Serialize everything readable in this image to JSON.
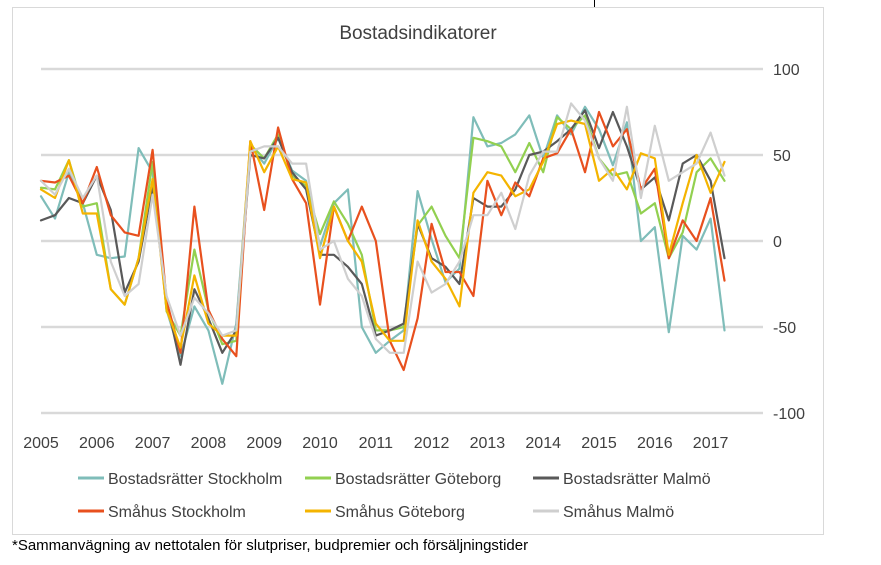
{
  "chart_data": {
    "type": "line",
    "title": "Bostadsindikatorer",
    "xlabel": "",
    "ylabel": "",
    "ylim": [
      -100,
      100
    ],
    "y_ticks": [
      100,
      50,
      0,
      -50,
      -100
    ],
    "y_tick_labels": [
      "100",
      "50",
      "0",
      "-50",
      "-100"
    ],
    "x_ticks": [
      2005,
      2006,
      2007,
      2008,
      2009,
      2010,
      2011,
      2012,
      2013,
      2014,
      2015,
      2016,
      2017
    ],
    "x_tick_labels": [
      "2005",
      "2006",
      "2007",
      "2008",
      "2009",
      "2010",
      "2011",
      "2012",
      "2013",
      "2014",
      "2015",
      "2016",
      "2017"
    ],
    "grid": true,
    "legend_position": "bottom",
    "x": [
      2005.0,
      2005.25,
      2005.5,
      2005.75,
      2006.0,
      2006.25,
      2006.5,
      2006.75,
      2007.0,
      2007.25,
      2007.5,
      2007.75,
      2008.0,
      2008.25,
      2008.5,
      2008.75,
      2009.0,
      2009.25,
      2009.5,
      2009.75,
      2010.0,
      2010.25,
      2010.5,
      2010.75,
      2011.0,
      2011.25,
      2011.5,
      2011.75,
      2012.0,
      2012.25,
      2012.5,
      2012.75,
      2013.0,
      2013.25,
      2013.5,
      2013.75,
      2014.0,
      2014.25,
      2014.5,
      2014.75,
      2015.0,
      2015.25,
      2015.5,
      2015.75,
      2016.0,
      2016.25,
      2016.5,
      2016.75,
      2017.0,
      2017.25
    ],
    "series": [
      {
        "name": "Bostadsrätter Stockholm",
        "color": "#7fbdb9",
        "values": [
          26,
          13,
          40,
          22,
          -8,
          -10,
          -9,
          54,
          40,
          -40,
          -67,
          -38,
          -52,
          -83,
          -48,
          55,
          45,
          60,
          41,
          35,
          -3,
          22,
          30,
          -50,
          -65,
          -58,
          -52,
          29,
          1,
          -24,
          -16,
          72,
          55,
          57,
          62,
          73,
          48,
          73,
          62,
          78,
          65,
          44,
          69,
          0,
          8,
          -53,
          3,
          -5,
          13,
          -52
        ]
      },
      {
        "name": "Bostadsrätter Göteborg",
        "color": "#92d050",
        "values": [
          31,
          30,
          47,
          20,
          22,
          -28,
          -37,
          -10,
          46,
          -41,
          -55,
          -5,
          -40,
          -60,
          -58,
          56,
          48,
          62,
          38,
          32,
          4,
          23,
          10,
          -8,
          -52,
          -52,
          -50,
          9,
          20,
          3,
          -10,
          60,
          58,
          55,
          40,
          57,
          40,
          72,
          65,
          73,
          48,
          38,
          40,
          16,
          22,
          -10,
          5,
          40,
          48,
          35
        ]
      },
      {
        "name": "Bostadsrätter Malmö",
        "color": "#595959",
        "values": [
          12,
          15,
          25,
          22,
          38,
          18,
          -30,
          -12,
          32,
          -35,
          -72,
          -28,
          -45,
          -65,
          -52,
          50,
          48,
          60,
          40,
          30,
          -8,
          -8,
          -15,
          -25,
          -55,
          -52,
          -48,
          10,
          -10,
          -15,
          -25,
          25,
          20,
          20,
          30,
          50,
          52,
          58,
          65,
          76,
          54,
          75,
          55,
          30,
          37,
          12,
          45,
          50,
          35,
          -10
        ]
      },
      {
        "name": "Småhus Stockholm",
        "color": "#e8501e",
        "values": [
          35,
          34,
          38,
          22,
          43,
          15,
          5,
          3,
          53,
          -35,
          -65,
          20,
          -40,
          -57,
          -67,
          58,
          18,
          66,
          36,
          22,
          -37,
          20,
          0,
          20,
          0,
          -58,
          -75,
          -45,
          10,
          -18,
          -18,
          -32,
          35,
          15,
          34,
          26,
          48,
          51,
          65,
          40,
          75,
          55,
          65,
          30,
          42,
          -10,
          12,
          0,
          25,
          -23
        ]
      },
      {
        "name": "Småhus Göteborg",
        "color": "#f4b400",
        "values": [
          30,
          25,
          47,
          16,
          16,
          -28,
          -37,
          -10,
          36,
          -40,
          -62,
          -20,
          -48,
          -55,
          -55,
          58,
          40,
          55,
          36,
          34,
          -10,
          20,
          0,
          -12,
          -48,
          -58,
          -58,
          12,
          -12,
          -22,
          -38,
          28,
          40,
          38,
          26,
          30,
          46,
          68,
          70,
          68,
          35,
          42,
          30,
          51,
          48,
          -8,
          22,
          50,
          28,
          46
        ]
      },
      {
        "name": "Småhus Malmö",
        "color": "#cfcfcf",
        "values": [
          35,
          27,
          42,
          25,
          38,
          -12,
          -32,
          -25,
          27,
          -32,
          -55,
          -33,
          -42,
          -55,
          -52,
          52,
          55,
          55,
          45,
          45,
          -5,
          0,
          -22,
          -32,
          -57,
          -65,
          -65,
          -12,
          -30,
          -25,
          -12,
          15,
          15,
          28,
          7,
          38,
          52,
          52,
          80,
          70,
          48,
          35,
          78,
          25,
          67,
          35,
          40,
          45,
          63,
          38
        ]
      }
    ]
  },
  "footnote": "*Sammanvägning av nettotalen för slutpriser, budpremier och försäljningstider"
}
